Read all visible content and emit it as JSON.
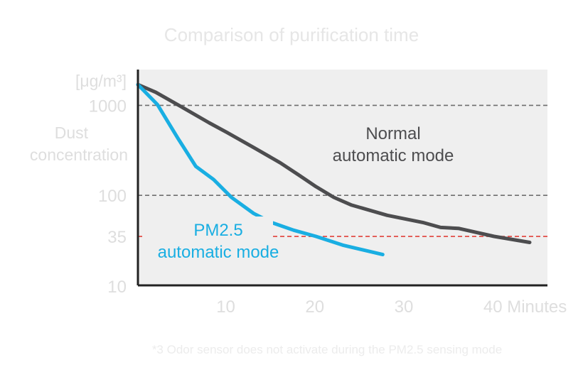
{
  "title": "Comparison of purification time",
  "footnote": "*3 Odor sensor does not activate during the PM2.5 sensing mode",
  "chart_data": {
    "type": "line",
    "title": "Comparison of purification time",
    "xlabel": "Minutes",
    "ylabel": [
      "Dust",
      "concentration"
    ],
    "yunit": "[μg/m³]",
    "yscale": "log",
    "xlim": [
      0,
      46
    ],
    "ylim": [
      10,
      2500
    ],
    "x_ticks": [
      {
        "value": 10,
        "label": "10"
      },
      {
        "value": 20,
        "label": "20"
      },
      {
        "value": 30,
        "label": "30"
      },
      {
        "value": 40,
        "label": "40 Minutes"
      }
    ],
    "y_ticks": [
      {
        "value": 1000,
        "label": "1000"
      },
      {
        "value": 100,
        "label": "100"
      },
      {
        "value": 35,
        "label": "35"
      },
      {
        "value": 10,
        "label": "10"
      }
    ],
    "reference_lines": [
      {
        "value": 1000,
        "color": "#6e6e6e"
      },
      {
        "value": 100,
        "color": "#6e6e6e"
      },
      {
        "value": 35,
        "color": "#e0403a"
      }
    ],
    "grid": false,
    "colors": {
      "background": "#efefef",
      "normal": "#4d4d4f",
      "pm25": "#19aee2",
      "axis": "#222222"
    },
    "series": [
      {
        "name": "Normal automatic mode",
        "label_lines": [
          "Normal",
          "automatic mode"
        ],
        "color": "#4d4d4f",
        "x": [
          0,
          2,
          5,
          8,
          10,
          13,
          16,
          18,
          20,
          22,
          24,
          28,
          32,
          34,
          36,
          40,
          44
        ],
        "y": [
          1700,
          1400,
          950,
          640,
          500,
          340,
          230,
          170,
          125,
          95,
          78,
          60,
          50,
          44,
          43,
          35,
          30
        ]
      },
      {
        "name": "PM2.5 automatic mode",
        "label_lines": [
          "PM2.5",
          "automatic mode"
        ],
        "color": "#19aee2",
        "x": [
          0,
          2.2,
          4.5,
          6.5,
          8.5,
          10.5,
          13,
          15,
          17.5,
          20,
          23,
          27.5
        ],
        "y": [
          1700,
          1020,
          430,
          210,
          150,
          95,
          63,
          50,
          41,
          35,
          28,
          22
        ]
      }
    ]
  }
}
